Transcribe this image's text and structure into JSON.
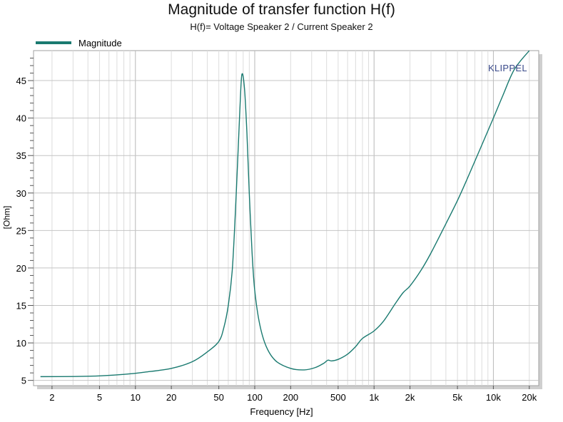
{
  "chart_data": {
    "type": "line",
    "title": "Magnitude of transfer function H(f)",
    "subtitle": "H(f)= Voltage Speaker 2 / Current Speaker 2",
    "xlabel": "Frequency [Hz]",
    "ylabel": "[Ohm]",
    "xscale": "log",
    "xlim": [
      1.4,
      24000
    ],
    "ylim": [
      4.3,
      49
    ],
    "grid": true,
    "legend_position": "top-left",
    "watermark": "KLIPPEL",
    "x_tick_values": [
      2,
      5,
      10,
      20,
      50,
      100,
      200,
      500,
      1000,
      2000,
      5000,
      10000,
      20000
    ],
    "x_tick_labels": [
      "2",
      "5",
      "10",
      "20",
      "50",
      "100",
      "200",
      "500",
      "1k",
      "2k",
      "5k",
      "10k",
      "20k"
    ],
    "y_tick_values": [
      5,
      10,
      15,
      20,
      25,
      30,
      35,
      40,
      45
    ],
    "y_tick_labels": [
      "5",
      "10",
      "15",
      "20",
      "25",
      "30",
      "35",
      "40",
      "45"
    ],
    "series": [
      {
        "name": "Magnitude",
        "color": "#1a7a70",
        "points": [
          [
            1.6,
            5.5
          ],
          [
            3,
            5.52
          ],
          [
            5,
            5.6
          ],
          [
            8,
            5.8
          ],
          [
            12,
            6.1
          ],
          [
            20,
            6.6
          ],
          [
            30,
            7.5
          ],
          [
            40,
            8.8
          ],
          [
            50,
            10.2
          ],
          [
            55,
            12.0
          ],
          [
            60,
            15.0
          ],
          [
            65,
            20.0
          ],
          [
            70,
            30.0
          ],
          [
            75,
            41.0
          ],
          [
            78,
            45.8
          ],
          [
            82,
            44.0
          ],
          [
            86,
            38.0
          ],
          [
            90,
            30.0
          ],
          [
            95,
            22.0
          ],
          [
            100,
            17.0
          ],
          [
            110,
            12.5
          ],
          [
            125,
            9.5
          ],
          [
            150,
            7.6
          ],
          [
            200,
            6.6
          ],
          [
            260,
            6.4
          ],
          [
            320,
            6.7
          ],
          [
            380,
            7.3
          ],
          [
            410,
            7.7
          ],
          [
            440,
            7.6
          ],
          [
            500,
            7.8
          ],
          [
            600,
            8.5
          ],
          [
            700,
            9.5
          ],
          [
            800,
            10.6
          ],
          [
            1000,
            11.6
          ],
          [
            1200,
            12.9
          ],
          [
            1500,
            15.2
          ],
          [
            1750,
            16.7
          ],
          [
            2000,
            17.6
          ],
          [
            2500,
            19.8
          ],
          [
            3000,
            22.0
          ],
          [
            4000,
            25.9
          ],
          [
            5000,
            29.0
          ],
          [
            6000,
            31.8
          ],
          [
            8000,
            36.4
          ],
          [
            10000,
            40.0
          ],
          [
            12000,
            43.0
          ],
          [
            15000,
            46.5
          ],
          [
            20000,
            49.0
          ]
        ]
      }
    ]
  }
}
